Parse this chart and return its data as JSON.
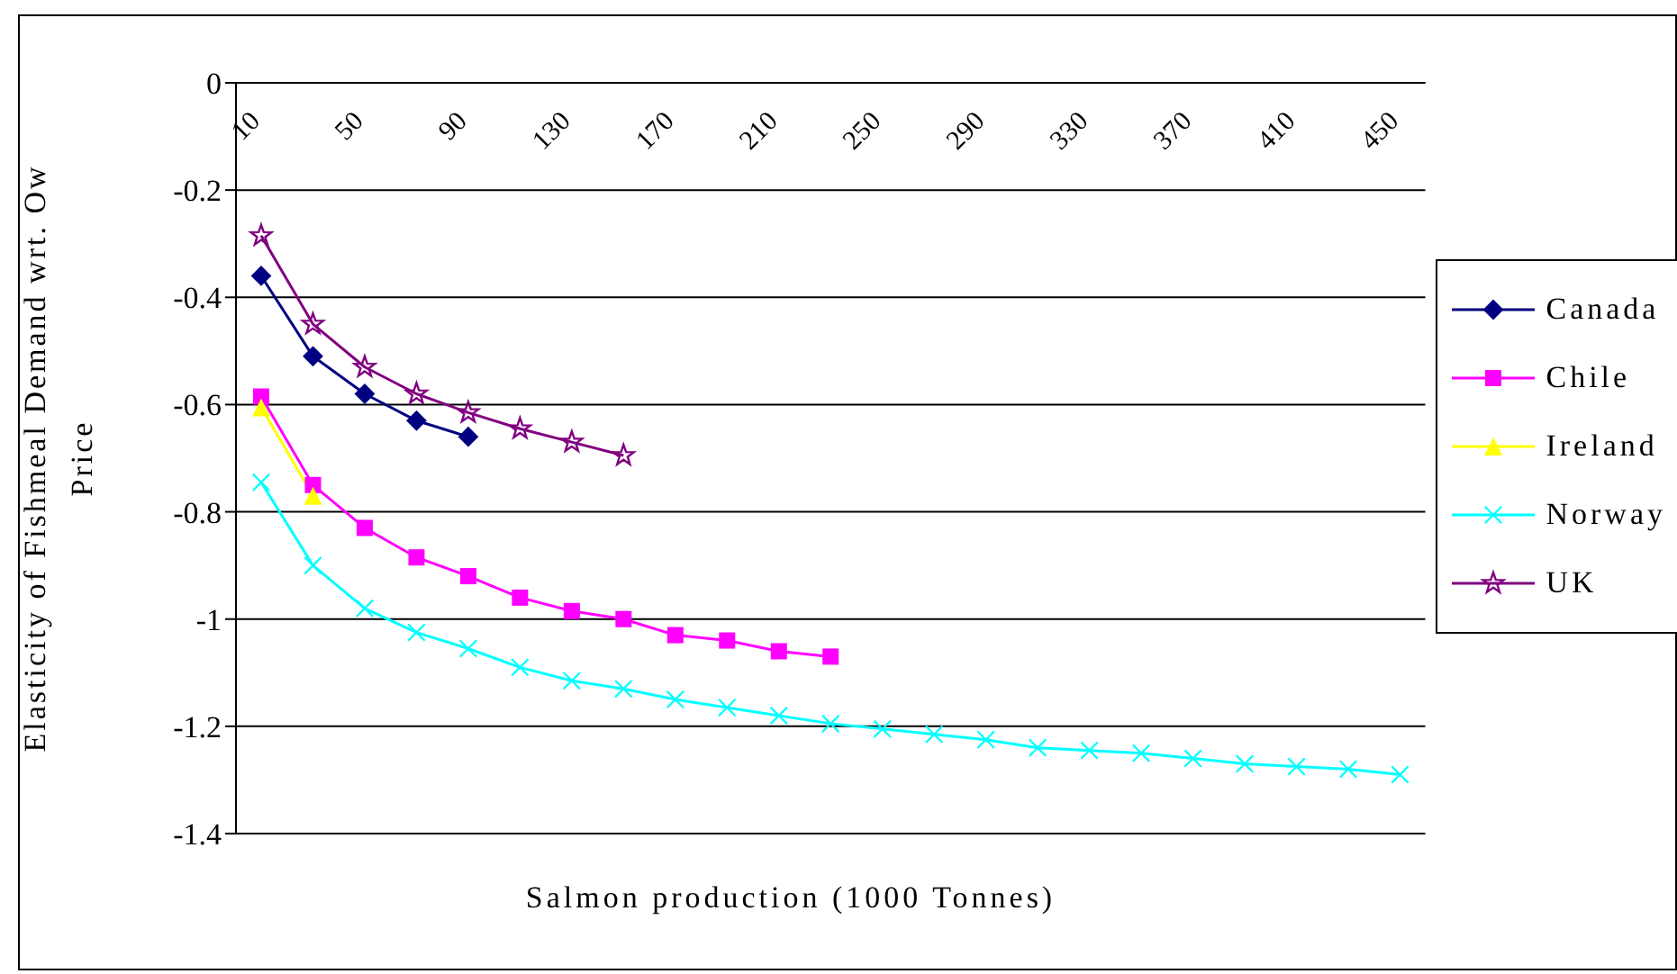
{
  "chart_data": {
    "type": "line",
    "xlabel": "Salmon production (1000 Tonnes)",
    "ylabel": "Elasticity of Fishmeal Demand wrt. Ow Price",
    "categories": [
      "10",
      null,
      "50",
      null,
      "90",
      null,
      "130",
      null,
      "170",
      null,
      "210",
      null,
      "250",
      null,
      "290",
      null,
      "330",
      null,
      "370",
      null,
      "410",
      null,
      "450"
    ],
    "series": [
      {
        "name": "Canada",
        "color": "#000080",
        "marker": "diamond",
        "values": [
          -0.36,
          -0.51,
          -0.58,
          -0.63,
          -0.66,
          null,
          null,
          null,
          null,
          null,
          null,
          null,
          null,
          null,
          null,
          null,
          null,
          null,
          null,
          null,
          null,
          null,
          null
        ]
      },
      {
        "name": "Chile",
        "color": "#ff00ff",
        "marker": "square",
        "values": [
          -0.585,
          -0.75,
          -0.83,
          -0.885,
          -0.92,
          -0.96,
          -0.985,
          -1.0,
          -1.03,
          -1.04,
          -1.06,
          -1.07,
          null,
          null,
          null,
          null,
          null,
          null,
          null,
          null,
          null,
          null,
          null
        ]
      },
      {
        "name": "Ireland",
        "color": "#ffff00",
        "marker": "triangle",
        "values": [
          -0.605,
          -0.77,
          null,
          null,
          null,
          null,
          null,
          null,
          null,
          null,
          null,
          null,
          null,
          null,
          null,
          null,
          null,
          null,
          null,
          null,
          null,
          null,
          null
        ]
      },
      {
        "name": "Norway",
        "color": "#00ffff",
        "marker": "cross",
        "values": [
          -0.745,
          -0.9,
          -0.98,
          -1.025,
          -1.055,
          -1.09,
          -1.115,
          -1.13,
          -1.15,
          -1.165,
          -1.18,
          -1.195,
          -1.205,
          -1.215,
          -1.225,
          -1.24,
          -1.245,
          -1.25,
          -1.26,
          -1.27,
          -1.275,
          -1.28,
          -1.29
        ]
      },
      {
        "name": "UK",
        "color": "#800080",
        "marker": "star",
        "values": [
          -0.285,
          -0.45,
          -0.53,
          -0.58,
          -0.615,
          -0.645,
          -0.67,
          -0.695,
          null,
          null,
          null,
          null,
          null,
          null,
          null,
          null,
          null,
          null,
          null,
          null,
          null,
          null,
          null
        ]
      }
    ],
    "ylim": [
      -1.4,
      0
    ],
    "yticks": [
      0,
      -0.2,
      -0.4,
      -0.6,
      -0.8,
      -1,
      -1.2,
      -1.4
    ],
    "grid": "y",
    "legend": "right"
  }
}
